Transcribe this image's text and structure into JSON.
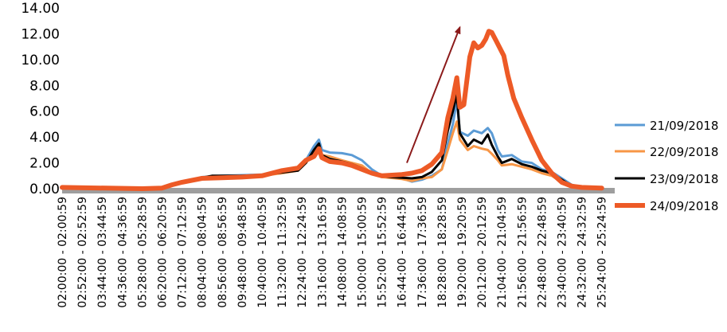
{
  "chart_data": {
    "type": "line",
    "title": "",
    "xlabel": "",
    "ylabel": "",
    "ylim": [
      0,
      14
    ],
    "yticks": [
      "0.00",
      "2.00",
      "4.00",
      "6.00",
      "8.00",
      "10.00",
      "12.00",
      "14.00"
    ],
    "grid": false,
    "legend_position": "right",
    "x_categories": [
      "02:00:00 - 02:00:59",
      "02:52:00 - 02:52:59",
      "03:44:00 - 03:44:59",
      "04:36:00 - 04:36:59",
      "05:28:00 - 05:28:59",
      "06:20:00 - 06:20:59",
      "07:12:00 - 07:12:59",
      "08:04:00 - 08:04:59",
      "08:56:00 - 08:56:59",
      "09:48:00 - 09:48:59",
      "10:40:00 - 10:40:59",
      "11:32:00 - 11:32:59",
      "12:24:00 - 12:24:59",
      "13:16:00 - 13:16:59",
      "14:08:00 - 14:08:59",
      "15:00:00 - 15:00:59",
      "15:52:00 - 15:52:59",
      "16:44:00 - 16:44:59",
      "17:36:00 - 17:36:59",
      "18:28:00 - 18:28:59",
      "19:20:00 - 19:20:59",
      "20:12:00 - 20:12:59",
      "21:04:00 - 21:04:59",
      "21:56:00 - 21:56:59",
      "22:48:00 - 22:48:59",
      "23:40:00 - 23:40:59",
      "24:32:00 - 24:32:59",
      "25:24:00 - 25:24:59"
    ],
    "series": [
      {
        "name": "21/09/2018",
        "color": "#5b9bd5",
        "width": 3,
        "points": [
          [
            0,
            0.1
          ],
          [
            4,
            0
          ],
          [
            5,
            0.05
          ],
          [
            5.5,
            0.3
          ],
          [
            6,
            0.5
          ],
          [
            7,
            0.9
          ],
          [
            8,
            1.0
          ],
          [
            9,
            1.05
          ],
          [
            10,
            1.1
          ],
          [
            11,
            1.3
          ],
          [
            11.8,
            1.5
          ],
          [
            12.2,
            2.2
          ],
          [
            12.6,
            3.3
          ],
          [
            12.85,
            3.8
          ],
          [
            13,
            3.0
          ],
          [
            13.4,
            2.8
          ],
          [
            14,
            2.75
          ],
          [
            14.5,
            2.6
          ],
          [
            15,
            2.2
          ],
          [
            15.5,
            1.5
          ],
          [
            16,
            1.0
          ],
          [
            17,
            0.8
          ],
          [
            17.5,
            0.55
          ],
          [
            18,
            0.7
          ],
          [
            18.5,
            1.0
          ],
          [
            19,
            1.5
          ],
          [
            19.3,
            3.5
          ],
          [
            19.55,
            5.0
          ],
          [
            19.75,
            6.8
          ],
          [
            19.9,
            4.4
          ],
          [
            20.3,
            4.1
          ],
          [
            20.6,
            4.5
          ],
          [
            21,
            4.3
          ],
          [
            21.3,
            4.7
          ],
          [
            21.5,
            4.3
          ],
          [
            21.8,
            3.0
          ],
          [
            22,
            2.5
          ],
          [
            22.5,
            2.6
          ],
          [
            23,
            2.1
          ],
          [
            23.5,
            2.0
          ],
          [
            24,
            1.5
          ],
          [
            24.5,
            1.3
          ],
          [
            25,
            0.8
          ],
          [
            25.5,
            0.3
          ],
          [
            26,
            0.1
          ],
          [
            27,
            0.05
          ]
        ]
      },
      {
        "name": "22/09/2018",
        "color": "#f79646",
        "width": 3,
        "points": [
          [
            0,
            0.1
          ],
          [
            4,
            0
          ],
          [
            5,
            0.05
          ],
          [
            5.5,
            0.3
          ],
          [
            6,
            0.5
          ],
          [
            7,
            0.8
          ],
          [
            8,
            0.9
          ],
          [
            9,
            0.95
          ],
          [
            10,
            1.0
          ],
          [
            11,
            1.2
          ],
          [
            11.8,
            1.4
          ],
          [
            12.2,
            2.0
          ],
          [
            12.6,
            2.8
          ],
          [
            12.85,
            3.1
          ],
          [
            13,
            2.6
          ],
          [
            13.4,
            2.5
          ],
          [
            14,
            2.2
          ],
          [
            14.5,
            2.0
          ],
          [
            15,
            1.8
          ],
          [
            15.5,
            1.2
          ],
          [
            16,
            0.9
          ],
          [
            17,
            0.75
          ],
          [
            17.5,
            0.6
          ],
          [
            18,
            0.8
          ],
          [
            18.5,
            0.9
          ],
          [
            19,
            1.5
          ],
          [
            19.3,
            3.0
          ],
          [
            19.55,
            4.3
          ],
          [
            19.75,
            5.2
          ],
          [
            19.9,
            3.8
          ],
          [
            20.3,
            3.0
          ],
          [
            20.6,
            3.3
          ],
          [
            21,
            3.1
          ],
          [
            21.3,
            3.0
          ],
          [
            21.5,
            2.7
          ],
          [
            21.8,
            2.2
          ],
          [
            22,
            1.8
          ],
          [
            22.5,
            1.9
          ],
          [
            23,
            1.7
          ],
          [
            23.5,
            1.5
          ],
          [
            24,
            1.2
          ],
          [
            24.5,
            1.0
          ],
          [
            25,
            0.5
          ],
          [
            25.5,
            0.2
          ],
          [
            26,
            0.1
          ],
          [
            27,
            0.05
          ]
        ]
      },
      {
        "name": "23/09/2018",
        "color": "#000000",
        "width": 3,
        "points": [
          [
            0,
            0.1
          ],
          [
            4,
            0
          ],
          [
            5,
            0.05
          ],
          [
            5.5,
            0.3
          ],
          [
            6,
            0.5
          ],
          [
            7,
            0.85
          ],
          [
            7.5,
            1.0
          ],
          [
            8,
            1.0
          ],
          [
            9,
            1.0
          ],
          [
            10,
            1.05
          ],
          [
            11,
            1.25
          ],
          [
            11.8,
            1.4
          ],
          [
            12.2,
            2.0
          ],
          [
            12.6,
            3.0
          ],
          [
            12.85,
            3.5
          ],
          [
            13,
            2.6
          ],
          [
            13.4,
            2.3
          ],
          [
            14,
            2.1
          ],
          [
            14.5,
            1.9
          ],
          [
            15,
            1.6
          ],
          [
            15.5,
            1.2
          ],
          [
            16,
            0.95
          ],
          [
            17,
            0.85
          ],
          [
            17.5,
            0.8
          ],
          [
            18,
            0.9
          ],
          [
            18.5,
            1.3
          ],
          [
            19,
            2.2
          ],
          [
            19.3,
            4.5
          ],
          [
            19.55,
            6.0
          ],
          [
            19.75,
            7.3
          ],
          [
            19.9,
            4.3
          ],
          [
            20.3,
            3.3
          ],
          [
            20.6,
            3.8
          ],
          [
            21,
            3.5
          ],
          [
            21.3,
            4.2
          ],
          [
            21.5,
            3.4
          ],
          [
            21.8,
            2.5
          ],
          [
            22,
            2.0
          ],
          [
            22.5,
            2.3
          ],
          [
            23,
            1.9
          ],
          [
            23.5,
            1.7
          ],
          [
            24,
            1.4
          ],
          [
            24.5,
            1.2
          ],
          [
            25,
            0.7
          ],
          [
            25.5,
            0.2
          ],
          [
            26,
            0.1
          ],
          [
            27,
            0.05
          ]
        ]
      },
      {
        "name": "24/09/2018",
        "color": "#ed5a26",
        "width": 6,
        "points": [
          [
            0,
            0.1
          ],
          [
            4,
            0
          ],
          [
            5,
            0.05
          ],
          [
            5.5,
            0.3
          ],
          [
            6,
            0.5
          ],
          [
            7,
            0.8
          ],
          [
            8,
            0.85
          ],
          [
            9,
            0.9
          ],
          [
            10,
            1.0
          ],
          [
            11,
            1.4
          ],
          [
            11.8,
            1.6
          ],
          [
            12.2,
            2.2
          ],
          [
            12.6,
            2.5
          ],
          [
            12.85,
            3.1
          ],
          [
            13,
            2.4
          ],
          [
            13.4,
            2.1
          ],
          [
            14,
            2.0
          ],
          [
            14.5,
            1.8
          ],
          [
            15,
            1.5
          ],
          [
            15.5,
            1.2
          ],
          [
            16,
            1.0
          ],
          [
            17,
            1.1
          ],
          [
            17.5,
            1.2
          ],
          [
            18,
            1.4
          ],
          [
            18.5,
            1.9
          ],
          [
            19,
            2.8
          ],
          [
            19.3,
            5.5
          ],
          [
            19.55,
            7.0
          ],
          [
            19.75,
            8.6
          ],
          [
            19.9,
            6.3
          ],
          [
            20.1,
            6.5
          ],
          [
            20.4,
            10.2
          ],
          [
            20.6,
            11.3
          ],
          [
            20.8,
            10.9
          ],
          [
            21,
            11.1
          ],
          [
            21.2,
            11.6
          ],
          [
            21.35,
            12.2
          ],
          [
            21.5,
            12.1
          ],
          [
            21.7,
            11.5
          ],
          [
            21.9,
            10.9
          ],
          [
            22.1,
            10.3
          ],
          [
            22.3,
            8.8
          ],
          [
            22.6,
            7.0
          ],
          [
            23,
            5.5
          ],
          [
            23.5,
            3.8
          ],
          [
            24,
            2.2
          ],
          [
            24.5,
            1.2
          ],
          [
            25,
            0.5
          ],
          [
            25.5,
            0.2
          ],
          [
            26,
            0.1
          ],
          [
            27,
            0.05
          ]
        ]
      }
    ],
    "annotation_arrow": {
      "color": "#8b1a1a",
      "from": [
        17.25,
        2.0
      ],
      "to": [
        19.9,
        12.5
      ]
    }
  }
}
